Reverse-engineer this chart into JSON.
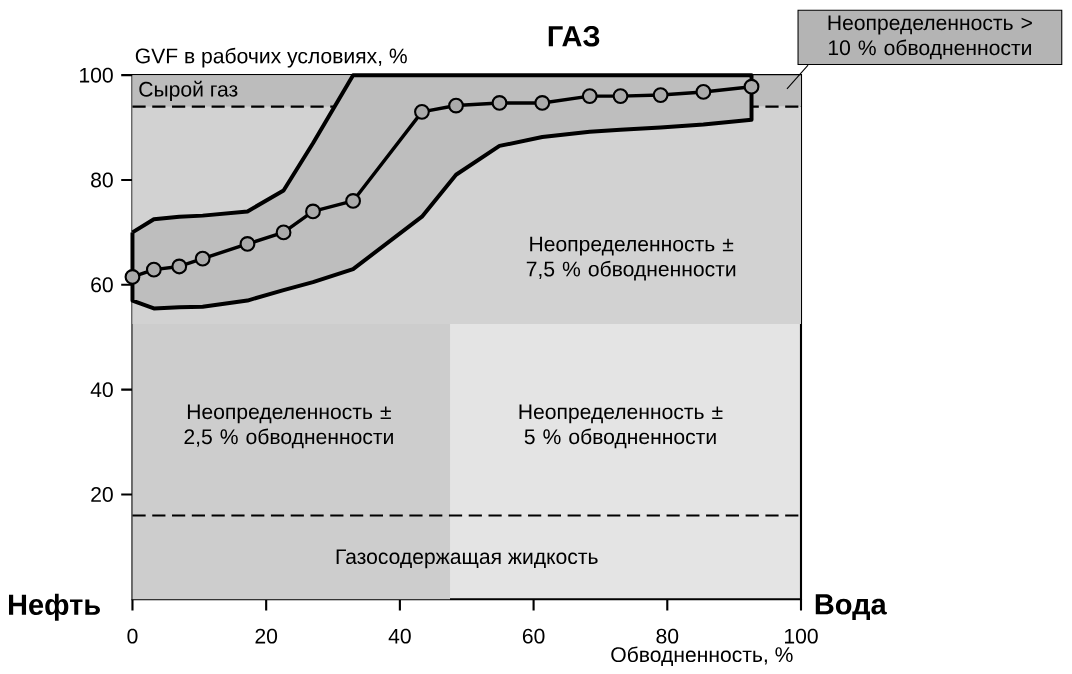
{
  "chart_data": {
    "type": "line",
    "title": "ГАЗ",
    "xlabel": "Обводненность, %",
    "ylabel": "GVF в рабочих условиях, %",
    "x": [
      0,
      3.2,
      7,
      10.5,
      17.2,
      22.6,
      27,
      33,
      43.3,
      48.4,
      54.9,
      61.3,
      68.4,
      73,
      79,
      85.4,
      92.6
    ],
    "series": [
      {
        "color": "#000000",
        "values": [
          61.5,
          62.9,
          63.5,
          65,
          67.8,
          70,
          74,
          76,
          93,
          94.2,
          94.7,
          94.7,
          96,
          96,
          96.2,
          96.8,
          97.8
        ],
        "lower": [
          57,
          55.5,
          55.7,
          55.8,
          57,
          59,
          60.5,
          63,
          73,
          81,
          86.5,
          88.2,
          89.2,
          89.6,
          90,
          90.6,
          91.5
        ],
        "upper": [
          70,
          72.5,
          73,
          73.2,
          74,
          78,
          87,
          100,
          100,
          100,
          100,
          100,
          100,
          100,
          100,
          100,
          100
        ]
      }
    ],
    "xlim": [
      0,
      100
    ],
    "ylim": [
      0,
      100
    ],
    "xticks": [
      0,
      20,
      40,
      60,
      80,
      100
    ],
    "yticks": [
      20,
      40,
      60,
      80,
      100
    ],
    "marker": "circle",
    "line_style": "solid",
    "grid": false,
    "bands": [
      {
        "axis": "x",
        "from": 0,
        "to": 47.5,
        "color": "#cdcdcd"
      },
      {
        "axis": "y",
        "from": 52.5,
        "to": 94,
        "color": "#d2d2d2"
      },
      {
        "axis": "y",
        "from": 94,
        "to": 100,
        "color": "#bcbcbc",
        "label": "Сырой газ"
      }
    ],
    "ref_lines": [
      {
        "axis": "y",
        "value": 94,
        "line_style": "dashed"
      },
      {
        "axis": "y",
        "value": 16,
        "line_style": "dashed",
        "label": "Газосодержащая жидкость"
      }
    ],
    "annotations": [
      "Нефть",
      "Вода",
      "Неопределенность ± 2,5 % обводненности",
      "Неопределенность ± 5 % обводненности",
      "Неопределенность ± 7,5 % обводненности",
      "Неопределенность > 10 % обводненности"
    ]
  }
}
